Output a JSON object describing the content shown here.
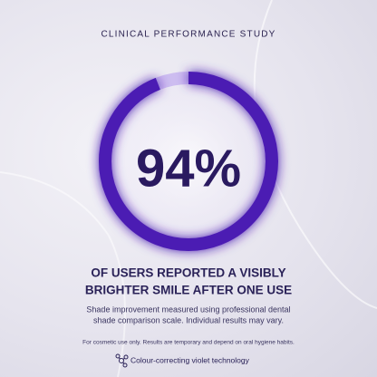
{
  "header": {
    "title": "CLINICAL PERFORMANCE STUDY"
  },
  "stat": {
    "value": 94,
    "label": "94%"
  },
  "headline": [
    "OF USERS REPORTED A VISIBLY",
    "BRIGHTER SMILE AFTER ONE USE"
  ],
  "body": [
    "Shade improvement measured using professional dental",
    "shade comparison scale. Individual results may vary."
  ],
  "disclaimer": "For cosmetic use only. Results are temporary and depend on oral hygiene habits.",
  "footer": {
    "feature": "Colour-correcting violet technology"
  }
}
